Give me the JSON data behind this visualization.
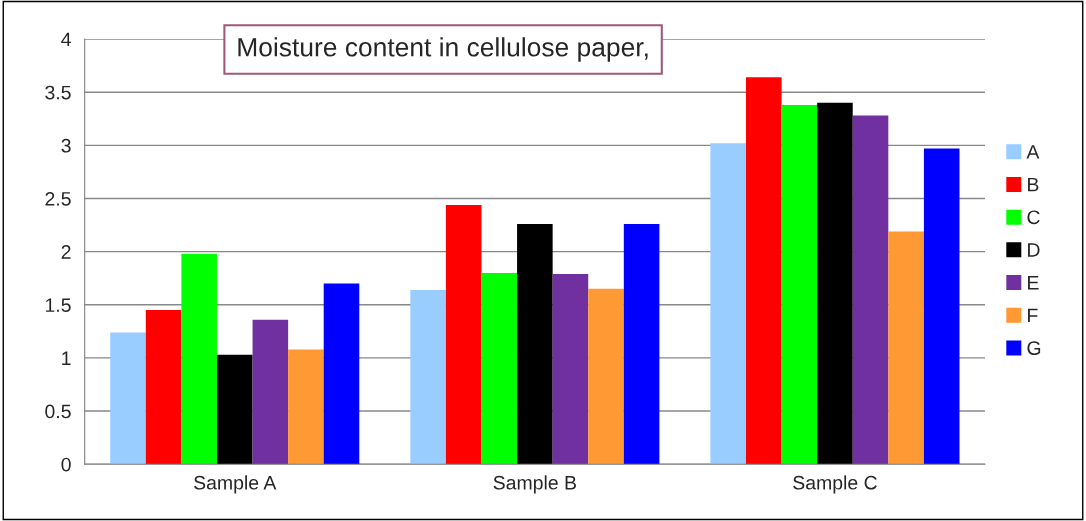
{
  "chart_data": {
    "type": "bar",
    "title": "Moisture content in cellulose paper,",
    "categories": [
      "Sample A",
      "Sample B",
      "Sample C"
    ],
    "series": [
      {
        "name": "A",
        "color": "#99ccff",
        "values": [
          1.24,
          1.64,
          3.02
        ]
      },
      {
        "name": "B",
        "color": "#ff0000",
        "values": [
          1.45,
          2.44,
          3.64
        ]
      },
      {
        "name": "C",
        "color": "#00ff00",
        "values": [
          1.98,
          1.8,
          3.38
        ]
      },
      {
        "name": "D",
        "color": "#000000",
        "values": [
          1.03,
          2.26,
          3.4
        ]
      },
      {
        "name": "E",
        "color": "#7030a0",
        "values": [
          1.36,
          1.79,
          3.28
        ]
      },
      {
        "name": "F",
        "color": "#ff9933",
        "values": [
          1.08,
          1.65,
          2.19
        ]
      },
      {
        "name": "G",
        "color": "#0000ff",
        "values": [
          1.7,
          2.26,
          2.97
        ]
      }
    ],
    "ylim": [
      0,
      4
    ],
    "yticks": [
      0,
      0.5,
      1,
      1.5,
      2,
      2.5,
      3,
      3.5,
      4
    ],
    "grid": "y",
    "legend": "right"
  }
}
